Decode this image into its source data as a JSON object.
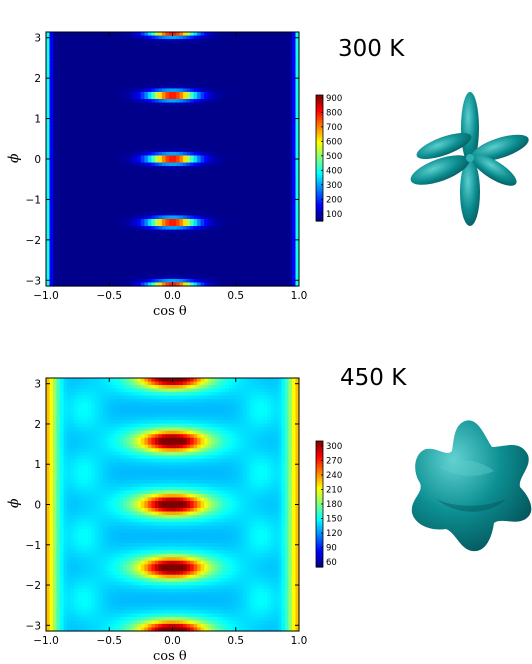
{
  "chart_data": [
    {
      "type": "heatmap",
      "title": "300 K",
      "xlabel": "cos θ",
      "ylabel": "ϕ",
      "xlim": [
        -1.0,
        1.0
      ],
      "ylim": [
        -3.14159,
        3.14159
      ],
      "x_ticks": [
        "−1.0",
        "−0.5",
        "0.0",
        "0.5",
        "1.0"
      ],
      "y_ticks": [
        "−3",
        "−2",
        "−1",
        "0",
        "1",
        "2",
        "3"
      ],
      "colorbar": {
        "min": 50,
        "max": 920,
        "ticks": [
          "100",
          "200",
          "300",
          "400",
          "500",
          "600",
          "700",
          "800",
          "900"
        ]
      },
      "lobes": 6,
      "peaks_phi": [
        -3.14159,
        -1.5708,
        0,
        1.5708,
        3.14159
      ],
      "peak_value": 900,
      "background_value": 60,
      "edge_value": 450
    },
    {
      "type": "heatmap",
      "title": "450 K",
      "xlabel": "cos θ",
      "ylabel": "ϕ",
      "xlim": [
        -1.0,
        1.0
      ],
      "ylim": [
        -3.14159,
        3.14159
      ],
      "x_ticks": [
        "−1.0",
        "−0.5",
        "0.0",
        "0.5",
        "1.0"
      ],
      "y_ticks": [
        "−3",
        "−2",
        "−1",
        "0",
        "1",
        "2",
        "3"
      ],
      "colorbar": {
        "min": 50,
        "max": 310,
        "ticks": [
          "60",
          "90",
          "120",
          "150",
          "180",
          "210",
          "240",
          "270",
          "300"
        ]
      },
      "lobes": 6,
      "peaks_phi": [
        -3.14159,
        -1.5708,
        0,
        1.5708,
        3.14159
      ],
      "peak_value": 300,
      "background_value": 130,
      "edge_value": 230
    }
  ],
  "colors": {
    "surface": "#0a8a8e",
    "surface_dark": "#04555a",
    "surface_light": "#4fc3c3"
  }
}
